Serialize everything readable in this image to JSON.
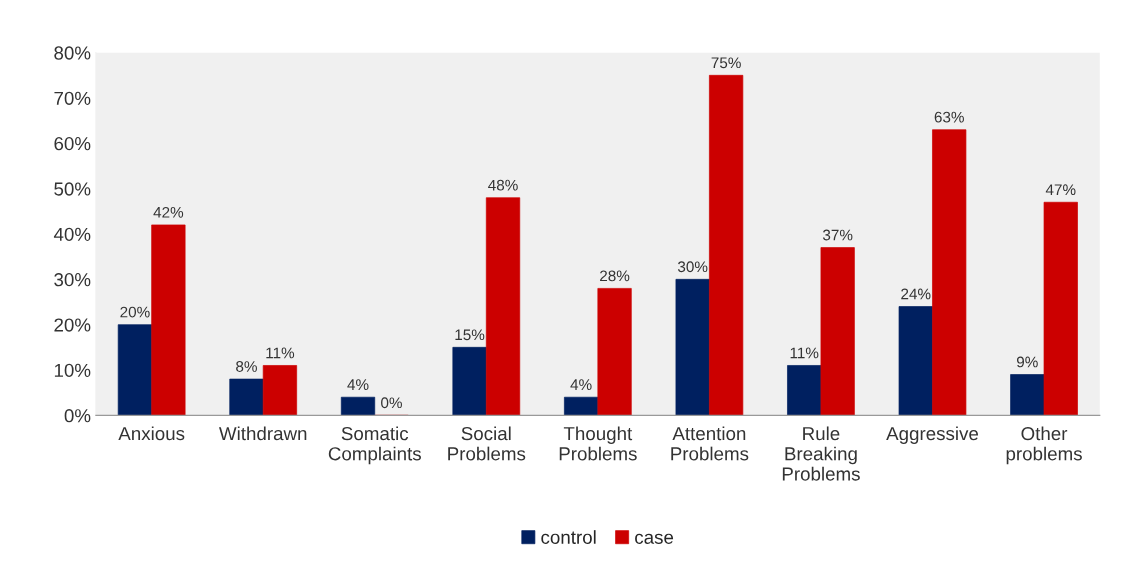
{
  "chart_data": {
    "type": "bar",
    "categories": [
      "Anxious",
      "Withdrawn",
      "Somatic\nComplaints",
      "Social\nProblems",
      "Thought\nProblems",
      "Attention\nProblems",
      "Rule\nBreaking\nProblems",
      "Aggressive",
      "Other\nproblems"
    ],
    "series": [
      {
        "name": "control",
        "color": "#002060",
        "values": [
          20,
          8,
          4,
          15,
          4,
          30,
          11,
          24,
          9
        ],
        "value_labels": [
          "20%",
          "8%",
          "4%",
          "15%",
          "4%",
          "30%",
          "11%",
          "24%",
          "9%"
        ]
      },
      {
        "name": "case",
        "color": "#cc0000",
        "values": [
          42,
          11,
          0,
          48,
          28,
          75,
          37,
          63,
          47
        ],
        "value_labels": [
          "42%",
          "11%",
          "0%",
          "48%",
          "28%",
          "75%",
          "37%",
          "63%",
          "47%"
        ]
      }
    ],
    "ylim": [
      0,
      80
    ],
    "yticks": [
      {
        "value": 0,
        "label": "0%"
      },
      {
        "value": 10,
        "label": "10%"
      },
      {
        "value": 20,
        "label": "20%"
      },
      {
        "value": 30,
        "label": "30%"
      },
      {
        "value": 40,
        "label": "40%"
      },
      {
        "value": 50,
        "label": "50%"
      },
      {
        "value": 60,
        "label": "60%"
      },
      {
        "value": 70,
        "label": "70%"
      },
      {
        "value": 80,
        "label": "80%"
      }
    ],
    "grid": false,
    "legend": "bottom"
  }
}
